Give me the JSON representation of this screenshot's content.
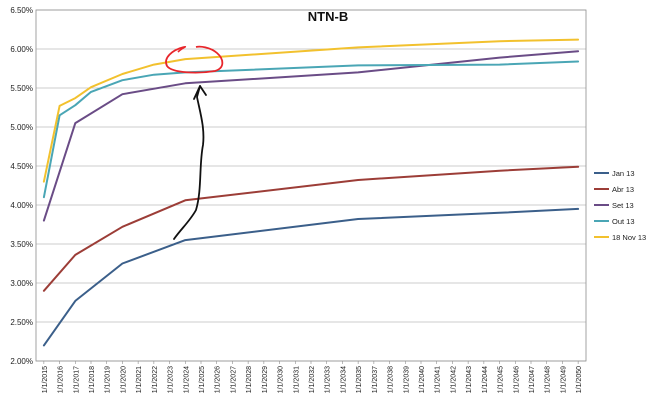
{
  "chart_data": {
    "type": "line",
    "title": "NTN-B",
    "xlabel": "",
    "ylabel": "",
    "ylim": [
      0.02,
      0.065
    ],
    "grid": "horizontal",
    "legend_position": "right",
    "y_ticks": [
      "2.00%",
      "2.50%",
      "3.00%",
      "3.50%",
      "4.00%",
      "4.50%",
      "5.00%",
      "5.50%",
      "6.00%",
      "6.50%"
    ],
    "x": [
      "1/1/2015",
      "1/1/2016",
      "1/1/2017",
      "1/1/2018",
      "1/1/2019",
      "1/1/2020",
      "1/1/2021",
      "1/1/2022",
      "1/1/2023",
      "1/1/2024",
      "1/1/2025",
      "1/1/2026",
      "1/1/2027",
      "1/1/2028",
      "1/1/2029",
      "1/1/2030",
      "1/1/2031",
      "1/1/2032",
      "1/1/2033",
      "1/1/2034",
      "1/1/2035",
      "1/1/2037",
      "1/1/2038",
      "1/1/2039",
      "1/1/2040",
      "1/1/2041",
      "1/1/2042",
      "1/1/2043",
      "1/1/2044",
      "1/1/2045",
      "1/1/2046",
      "1/1/2047",
      "1/1/2048",
      "1/1/2049",
      "1/1/2050"
    ],
    "series": [
      {
        "name": "Jan 13",
        "color": "#3b5f8a",
        "x": [
          "1/1/2015",
          "1/1/2017",
          "1/1/2020",
          "1/1/2024",
          "1/1/2035",
          "1/1/2045",
          "1/1/2050"
        ],
        "values": [
          0.022,
          0.0277,
          0.0325,
          0.0355,
          0.0382,
          0.039,
          0.0395
        ]
      },
      {
        "name": "Abr 13",
        "color": "#9c3d37",
        "x": [
          "1/1/2015",
          "1/1/2017",
          "1/1/2020",
          "1/1/2024",
          "1/1/2035",
          "1/1/2045",
          "1/1/2050"
        ],
        "values": [
          0.029,
          0.0336,
          0.0372,
          0.0406,
          0.0432,
          0.0444,
          0.0449
        ]
      },
      {
        "name": "Set 13",
        "color": "#6a4c86",
        "x": [
          "1/1/2015",
          "1/1/2017",
          "1/1/2020",
          "1/1/2024",
          "1/1/2035",
          "1/1/2045",
          "1/1/2050"
        ],
        "values": [
          0.038,
          0.0505,
          0.0542,
          0.0556,
          0.057,
          0.0589,
          0.0597
        ]
      },
      {
        "name": "Out 13",
        "color": "#4aa6b5",
        "x": [
          "1/1/2015",
          "1/1/2016",
          "1/1/2017",
          "1/1/2018",
          "1/1/2020",
          "1/1/2022",
          "1/1/2024",
          "1/1/2035",
          "1/1/2045",
          "1/1/2050"
        ],
        "values": [
          0.041,
          0.0515,
          0.0528,
          0.0545,
          0.056,
          0.0567,
          0.057,
          0.0579,
          0.058,
          0.0584
        ]
      },
      {
        "name": "18 Nov 13",
        "color": "#f2c12e",
        "x": [
          "1/1/2015",
          "1/1/2016",
          "1/1/2017",
          "1/1/2018",
          "1/1/2020",
          "1/1/2022",
          "1/1/2024",
          "1/1/2035",
          "1/1/2045",
          "1/1/2050"
        ],
        "values": [
          0.043,
          0.0527,
          0.0537,
          0.0551,
          0.0568,
          0.058,
          0.0587,
          0.0602,
          0.061,
          0.0612
        ]
      }
    ]
  }
}
